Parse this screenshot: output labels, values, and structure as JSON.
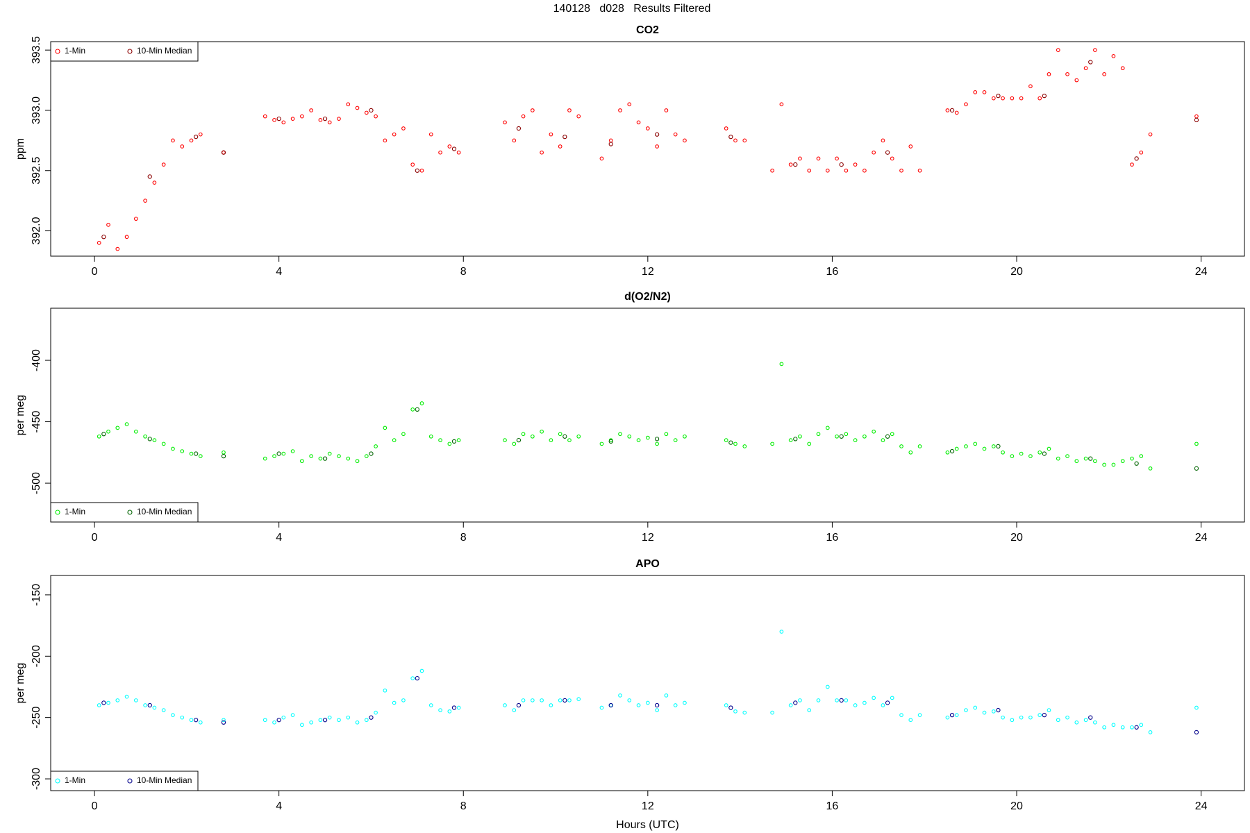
{
  "title": "140128   d028   Results Filtered",
  "chart_data": [
    {
      "type": "scatter",
      "title": "CO2",
      "ylabel": "ppm",
      "legend": "top-left",
      "xlim": [
        -0.95,
        24.94
      ],
      "xticks": [
        0,
        4,
        8,
        12,
        16,
        20,
        24
      ],
      "ylim": [
        391.79,
        393.57
      ],
      "yticks": [
        {
          "value": 392,
          "label": "392.0"
        },
        392.5,
        {
          "value": 393,
          "label": "393.0"
        },
        393.5
      ],
      "series": [
        {
          "name": "1-Min",
          "color": "#ff0000",
          "x": [
            0.1,
            0.3,
            0.5,
            0.7,
            0.9,
            1.1,
            1.3,
            1.5,
            1.7,
            1.9,
            2.1,
            2.3,
            2.8,
            3.7,
            3.9,
            4.1,
            4.3,
            4.5,
            4.7,
            4.9,
            5.1,
            5.3,
            5.5,
            5.7,
            5.9,
            6.1,
            6.3,
            6.5,
            6.7,
            6.9,
            7.1,
            7.3,
            7.5,
            7.7,
            7.9,
            8.9,
            9.1,
            9.3,
            9.5,
            9.7,
            9.9,
            10.1,
            10.3,
            10.5,
            11.0,
            11.2,
            11.4,
            11.6,
            11.8,
            12.0,
            12.2,
            12.4,
            12.6,
            12.8,
            13.7,
            13.9,
            14.1,
            14.7,
            14.9,
            15.1,
            15.3,
            15.5,
            15.7,
            15.9,
            16.1,
            16.3,
            16.5,
            16.7,
            16.9,
            17.1,
            17.3,
            17.5,
            17.7,
            17.9,
            18.5,
            18.7,
            18.9,
            19.1,
            19.3,
            19.5,
            19.7,
            19.9,
            20.1,
            20.3,
            20.5,
            20.7,
            20.9,
            21.1,
            21.3,
            21.5,
            21.7,
            21.9,
            22.1,
            22.3,
            22.5,
            22.7,
            22.9,
            23.9
          ],
          "values": [
            391.9,
            392.05,
            391.85,
            391.95,
            392.1,
            392.25,
            392.4,
            392.55,
            392.75,
            392.7,
            392.75,
            392.8,
            392.65,
            392.95,
            392.92,
            392.9,
            392.93,
            392.95,
            393.0,
            392.92,
            392.9,
            392.93,
            393.05,
            393.02,
            392.98,
            392.95,
            392.75,
            392.8,
            392.85,
            392.55,
            392.5,
            392.8,
            392.65,
            392.7,
            392.65,
            392.9,
            392.75,
            392.95,
            393.0,
            392.65,
            392.8,
            392.7,
            393.0,
            392.95,
            392.6,
            392.75,
            393.0,
            393.05,
            392.9,
            392.85,
            392.7,
            393.0,
            392.8,
            392.75,
            392.85,
            392.75,
            392.75,
            392.5,
            393.05,
            392.55,
            392.6,
            392.5,
            392.6,
            392.5,
            392.6,
            392.5,
            392.55,
            392.5,
            392.65,
            392.75,
            392.6,
            392.5,
            392.7,
            392.5,
            393.0,
            392.98,
            393.05,
            393.15,
            393.15,
            393.1,
            393.1,
            393.1,
            393.1,
            393.2,
            393.1,
            393.3,
            393.5,
            393.3,
            393.25,
            393.35,
            393.5,
            393.3,
            393.45,
            393.35,
            392.55,
            392.65,
            392.8,
            392.95
          ]
        },
        {
          "name": "10-Min Median",
          "color": "#8b0000",
          "x": [
            0.2,
            1.2,
            2.2,
            2.8,
            4.0,
            5.0,
            6.0,
            7.0,
            7.8,
            9.2,
            10.2,
            11.2,
            12.2,
            13.8,
            15.2,
            16.2,
            17.2,
            18.6,
            19.6,
            20.6,
            21.6,
            22.6,
            23.9
          ],
          "values": [
            391.95,
            392.45,
            392.78,
            392.65,
            392.93,
            392.93,
            393.0,
            392.5,
            392.68,
            392.85,
            392.78,
            392.72,
            392.8,
            392.78,
            392.55,
            392.55,
            392.65,
            393.0,
            393.12,
            393.12,
            393.4,
            392.6,
            392.92
          ]
        }
      ]
    },
    {
      "type": "scatter",
      "title": "d(O2/N2)",
      "ylabel": "per meg",
      "legend": "bottom-left",
      "xlim": [
        -0.95,
        24.94
      ],
      "xticks": [
        0,
        4,
        8,
        12,
        16,
        20,
        24
      ],
      "ylim": [
        -531.6,
        -357.6
      ],
      "yticks": [
        -500,
        -450,
        -400
      ],
      "series": [
        {
          "name": "1-Min",
          "color": "#00ee00",
          "x": [
            0.1,
            0.3,
            0.5,
            0.7,
            0.9,
            1.1,
            1.3,
            1.5,
            1.7,
            1.9,
            2.1,
            2.3,
            2.8,
            3.7,
            3.9,
            4.1,
            4.3,
            4.5,
            4.7,
            4.9,
            5.1,
            5.3,
            5.5,
            5.7,
            5.9,
            6.1,
            6.3,
            6.5,
            6.7,
            6.9,
            7.1,
            7.3,
            7.5,
            7.7,
            7.9,
            8.9,
            9.1,
            9.3,
            9.5,
            9.7,
            9.9,
            10.1,
            10.3,
            10.5,
            11.0,
            11.2,
            11.4,
            11.6,
            11.8,
            12.0,
            12.2,
            12.4,
            12.6,
            12.8,
            13.7,
            13.9,
            14.1,
            14.7,
            14.9,
            15.1,
            15.3,
            15.5,
            15.7,
            15.9,
            16.1,
            16.3,
            16.5,
            16.7,
            16.9,
            17.1,
            17.3,
            17.5,
            17.7,
            17.9,
            18.5,
            18.7,
            18.9,
            19.1,
            19.3,
            19.5,
            19.7,
            19.9,
            20.1,
            20.3,
            20.5,
            20.7,
            20.9,
            21.1,
            21.3,
            21.5,
            21.7,
            21.9,
            22.1,
            22.3,
            22.5,
            22.7,
            22.9,
            23.9
          ],
          "values": [
            -462,
            -458,
            -455,
            -452,
            -458,
            -462,
            -465,
            -468,
            -472,
            -474,
            -476,
            -478,
            -475,
            -480,
            -478,
            -476,
            -474,
            -482,
            -478,
            -480,
            -476,
            -478,
            -480,
            -482,
            -478,
            -470,
            -455,
            -465,
            -460,
            -440,
            -435,
            -462,
            -465,
            -468,
            -465,
            -465,
            -468,
            -460,
            -462,
            -458,
            -465,
            -460,
            -465,
            -462,
            -468,
            -465,
            -460,
            -462,
            -465,
            -463,
            -468,
            -460,
            -465,
            -462,
            -465,
            -468,
            -470,
            -468,
            -403,
            -465,
            -462,
            -468,
            -460,
            -455,
            -462,
            -460,
            -465,
            -462,
            -458,
            -465,
            -460,
            -470,
            -475,
            -470,
            -475,
            -472,
            -470,
            -468,
            -472,
            -470,
            -475,
            -478,
            -476,
            -478,
            -475,
            -472,
            -480,
            -478,
            -482,
            -480,
            -482,
            -485,
            -485,
            -482,
            -480,
            -478,
            -488,
            -468
          ]
        },
        {
          "name": "10-Min Median",
          "color": "#006400",
          "x": [
            0.2,
            1.2,
            2.2,
            2.8,
            4.0,
            5.0,
            6.0,
            7.0,
            7.8,
            9.2,
            10.2,
            11.2,
            12.2,
            13.8,
            15.2,
            16.2,
            17.2,
            18.6,
            19.6,
            20.6,
            21.6,
            22.6,
            23.9
          ],
          "values": [
            -460,
            -464,
            -476,
            -478,
            -476,
            -480,
            -476,
            -440,
            -466,
            -465,
            -462,
            -466,
            -464,
            -467,
            -464,
            -462,
            -462,
            -474,
            -470,
            -476,
            -480,
            -484,
            -488
          ]
        }
      ]
    },
    {
      "type": "scatter",
      "title": "APO",
      "ylabel": "per meg",
      "xlabel": "Hours (UTC)",
      "legend": "bottom-left",
      "xlim": [
        -0.95,
        24.94
      ],
      "xticks": [
        0,
        4,
        8,
        12,
        16,
        20,
        24
      ],
      "ylim": [
        -309.6,
        -134.2
      ],
      "yticks": [
        -300,
        -250,
        -200,
        -150
      ],
      "series": [
        {
          "name": "1-Min",
          "color": "#00ffff",
          "x": [
            0.1,
            0.3,
            0.5,
            0.7,
            0.9,
            1.1,
            1.3,
            1.5,
            1.7,
            1.9,
            2.1,
            2.3,
            2.8,
            3.7,
            3.9,
            4.1,
            4.3,
            4.5,
            4.7,
            4.9,
            5.1,
            5.3,
            5.5,
            5.7,
            5.9,
            6.1,
            6.3,
            6.5,
            6.7,
            6.9,
            7.1,
            7.3,
            7.5,
            7.7,
            7.9,
            8.9,
            9.1,
            9.3,
            9.5,
            9.7,
            9.9,
            10.1,
            10.3,
            10.5,
            11.0,
            11.2,
            11.4,
            11.6,
            11.8,
            12.0,
            12.2,
            12.4,
            12.6,
            12.8,
            13.7,
            13.9,
            14.1,
            14.7,
            14.9,
            15.1,
            15.3,
            15.5,
            15.7,
            15.9,
            16.1,
            16.3,
            16.5,
            16.7,
            16.9,
            17.1,
            17.3,
            17.5,
            17.7,
            17.9,
            18.5,
            18.7,
            18.9,
            19.1,
            19.3,
            19.5,
            19.7,
            19.9,
            20.1,
            20.3,
            20.5,
            20.7,
            20.9,
            21.1,
            21.3,
            21.5,
            21.7,
            21.9,
            22.1,
            22.3,
            22.5,
            22.7,
            22.9,
            23.9
          ],
          "values": [
            -240,
            -238,
            -236,
            -233,
            -236,
            -240,
            -242,
            -244,
            -248,
            -250,
            -252,
            -254,
            -252,
            -252,
            -254,
            -250,
            -248,
            -256,
            -254,
            -252,
            -250,
            -252,
            -250,
            -254,
            -252,
            -246,
            -228,
            -238,
            -236,
            -218,
            -212,
            -240,
            -244,
            -245,
            -242,
            -240,
            -244,
            -236,
            -236,
            -236,
            -240,
            -236,
            -236,
            -235,
            -242,
            -240,
            -232,
            -236,
            -240,
            -238,
            -244,
            -232,
            -240,
            -238,
            -240,
            -245,
            -246,
            -246,
            -180,
            -240,
            -236,
            -244,
            -236,
            -225,
            -236,
            -236,
            -240,
            -238,
            -234,
            -240,
            -234,
            -248,
            -252,
            -248,
            -250,
            -248,
            -244,
            -242,
            -246,
            -245,
            -250,
            -252,
            -250,
            -250,
            -248,
            -244,
            -252,
            -250,
            -254,
            -252,
            -254,
            -258,
            -256,
            -258,
            -258,
            -256,
            -262,
            -242
          ]
        },
        {
          "name": "10-Min Median",
          "color": "#00008b",
          "x": [
            0.2,
            1.2,
            2.2,
            2.8,
            4.0,
            5.0,
            6.0,
            7.0,
            7.8,
            9.2,
            10.2,
            11.2,
            12.2,
            13.8,
            15.2,
            16.2,
            17.2,
            18.6,
            19.6,
            20.6,
            21.6,
            22.6,
            23.9
          ],
          "values": [
            -238,
            -240,
            -252,
            -254,
            -252,
            -252,
            -250,
            -218,
            -242,
            -240,
            -236,
            -240,
            -240,
            -242,
            -238,
            -236,
            -238,
            -248,
            -244,
            -248,
            -250,
            -258,
            -262
          ]
        }
      ]
    }
  ]
}
